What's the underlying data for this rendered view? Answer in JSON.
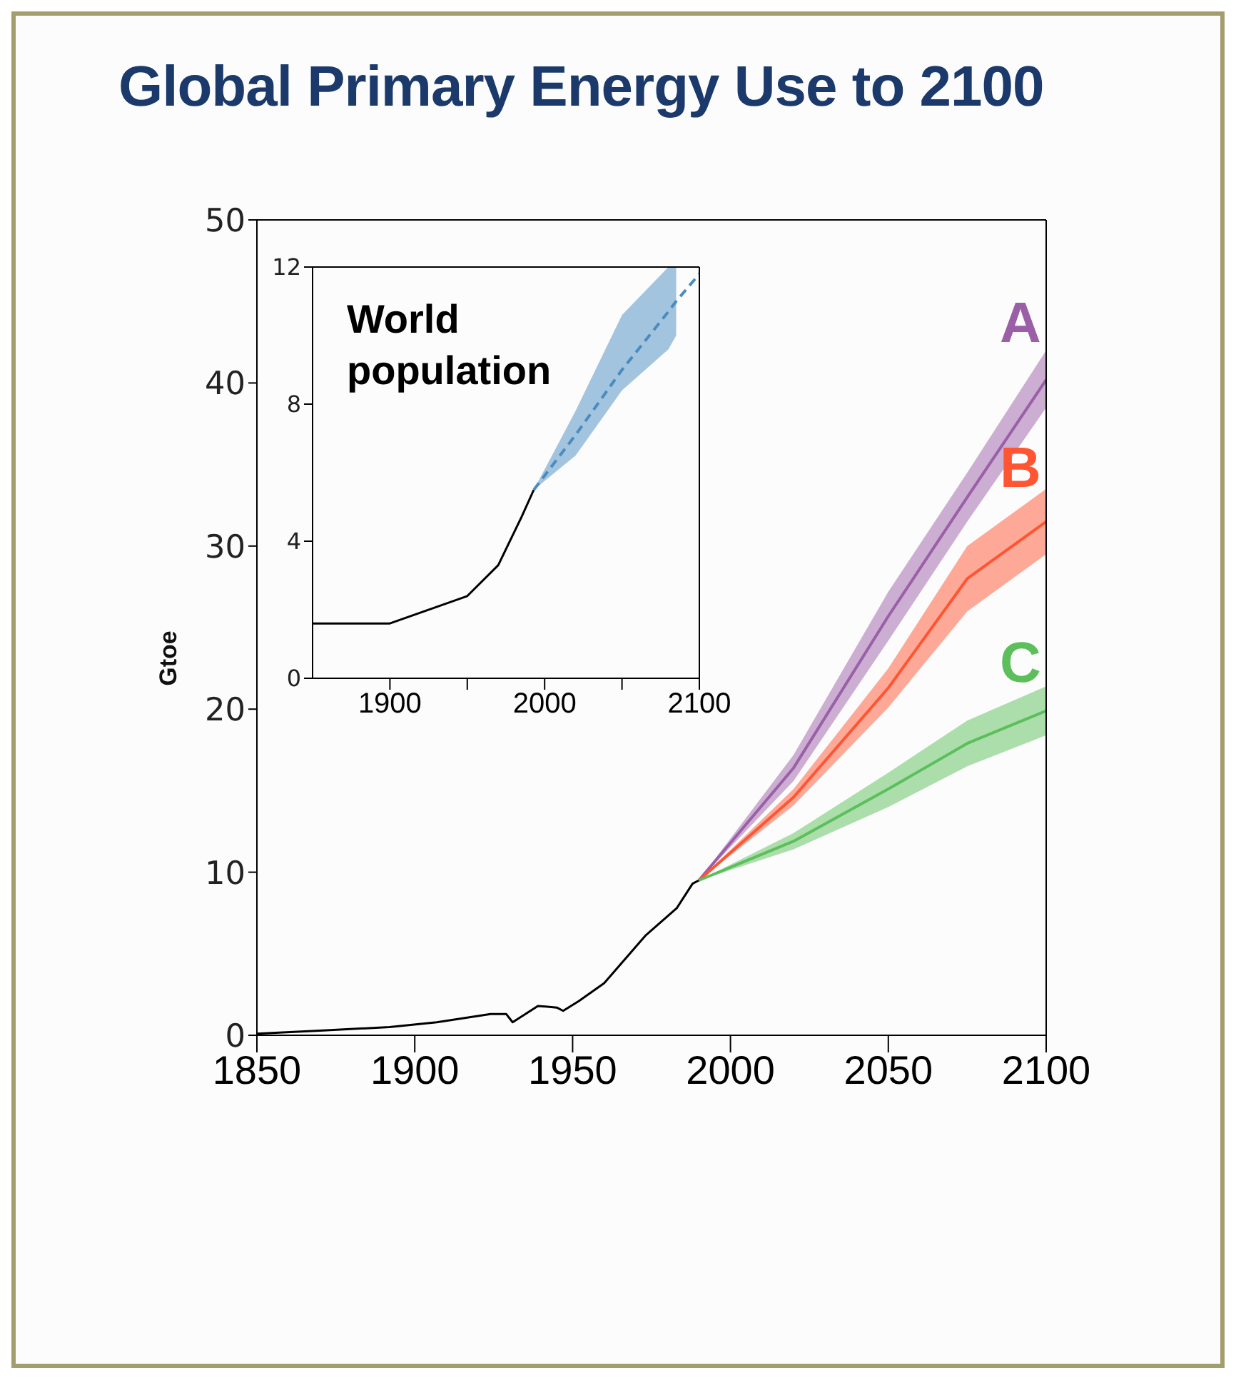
{
  "chart_data": [
    {
      "type": "line",
      "title": "Global Primary Energy Use to 2100",
      "ylabel": "Gtoe",
      "xlim": [
        1850,
        2100
      ],
      "xticks": [
        1850,
        1900,
        1950,
        2000,
        2050,
        2100
      ],
      "ylim": [
        0,
        50
      ],
      "yticks": [
        0,
        10,
        20,
        30,
        40,
        50
      ],
      "grid": false,
      "line_style": "solid",
      "series": [
        {
          "color": "#000000",
          "x": [
            1850,
            1871,
            1892,
            1907,
            1924,
            1929,
            1931,
            1939,
            1945,
            1947,
            1952,
            1960,
            1973,
            1983,
            1988,
            1990
          ],
          "values": [
            0.1,
            0.3,
            0.5,
            0.8,
            1.3,
            1.3,
            0.8,
            1.8,
            1.7,
            1.5,
            2.1,
            3.2,
            6.1,
            7.8,
            9.3,
            9.5
          ]
        },
        {
          "name": "A",
          "color": "#9b5fa8",
          "x": [
            1990,
            2020,
            2050,
            2075,
            2100
          ],
          "values": [
            9.5,
            16.4,
            25.7,
            33.0,
            40.2
          ],
          "lower": [
            9.5,
            15.6,
            24.2,
            31.5,
            38.5
          ],
          "upper": [
            9.5,
            17.2,
            27.2,
            34.5,
            42.0
          ]
        },
        {
          "name": "B",
          "color": "#ff5533",
          "x": [
            1990,
            2020,
            2050,
            2075,
            2100
          ],
          "values": [
            9.5,
            14.6,
            21.3,
            28.0,
            31.5
          ],
          "lower": [
            9.5,
            14.1,
            20.1,
            26.0,
            29.5
          ],
          "upper": [
            9.5,
            15.1,
            22.5,
            30.0,
            33.5
          ]
        },
        {
          "name": "C",
          "color": "#5cbf5c",
          "x": [
            1990,
            2020,
            2050,
            2075,
            2100
          ],
          "values": [
            9.5,
            11.9,
            15.1,
            17.9,
            19.9
          ],
          "lower": [
            9.5,
            11.4,
            14.0,
            16.5,
            18.4
          ],
          "upper": [
            9.5,
            12.4,
            16.1,
            19.3,
            21.4
          ]
        }
      ]
    },
    {
      "type": "line",
      "title": "World population",
      "xlim": [
        1850,
        2100
      ],
      "xticks": [
        1900,
        {
          "value": 1950,
          "label": null
        },
        2000,
        {
          "value": 2050,
          "label": null
        },
        2100
      ],
      "ylim": [
        0,
        12
      ],
      "yticks": [
        0,
        4,
        8,
        12
      ],
      "grid": false,
      "series": [
        {
          "color": "#000000",
          "line_style": "solid",
          "x": [
            1850,
            1900,
            1950,
            1970,
            1985,
            1993
          ],
          "values": [
            1.6,
            1.6,
            2.4,
            3.3,
            4.7,
            5.5
          ]
        },
        {
          "color": "#4a8cc0",
          "line_style": "dashed",
          "x": [
            1993,
            2020,
            2050,
            2080,
            2085,
            2100
          ],
          "values": [
            5.5,
            7.1,
            9.0,
            10.7,
            11.0,
            11.8
          ],
          "lower": [
            5.5,
            6.5,
            8.4,
            9.6,
            10.0,
            null
          ],
          "upper": [
            5.5,
            7.8,
            10.6,
            12.0,
            12.0,
            null
          ]
        }
      ]
    }
  ]
}
